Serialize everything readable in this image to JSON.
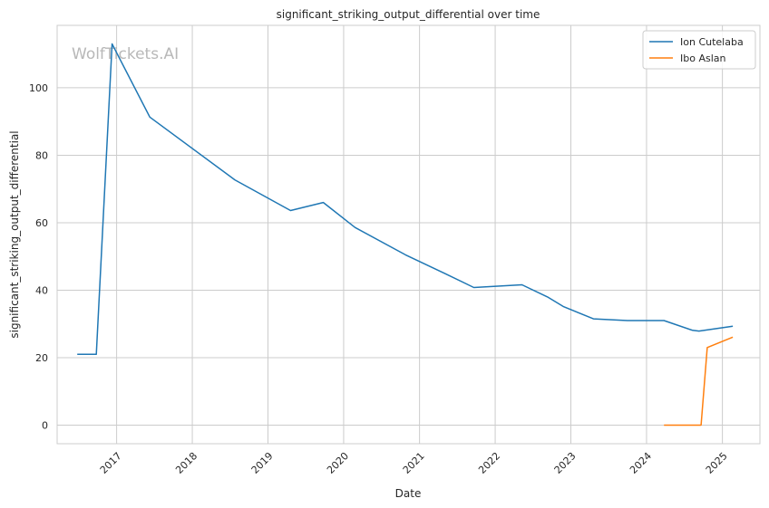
{
  "chart_data": {
    "type": "line",
    "title": "significant_striking_output_differential over time",
    "xlabel": "Date",
    "ylabel": "significant_striking_output_differential",
    "watermark": "WolfTickets.AI",
    "xlim": [
      "2016-03-20",
      "2025-07-01"
    ],
    "ylim": [
      -5.5,
      118.5
    ],
    "x_ticks": [
      "2017-01-01",
      "2018-01-01",
      "2019-01-01",
      "2020-01-01",
      "2021-01-01",
      "2022-01-01",
      "2023-01-01",
      "2024-01-01",
      "2025-01-01"
    ],
    "x_tick_labels": [
      "2017",
      "2018",
      "2019",
      "2020",
      "2021",
      "2022",
      "2023",
      "2024",
      "2025"
    ],
    "y_ticks": [
      0,
      20,
      40,
      60,
      80,
      100
    ],
    "y_tick_labels": [
      "0",
      "20",
      "40",
      "60",
      "80",
      "100"
    ],
    "grid": true,
    "legend_position": "top-right",
    "series": [
      {
        "name": "Ion Cutelaba",
        "color": "#1f77b4",
        "points": [
          [
            "2016-06-25",
            21.0
          ],
          [
            "2016-09-25",
            21.0
          ],
          [
            "2016-12-10",
            113.0
          ],
          [
            "2017-06-10",
            91.3
          ],
          [
            "2018-07-25",
            72.7
          ],
          [
            "2019-04-20",
            63.6
          ],
          [
            "2019-09-25",
            66.0
          ],
          [
            "2020-02-25",
            58.6
          ],
          [
            "2020-10-25",
            50.5
          ],
          [
            "2021-05-01",
            45.0
          ],
          [
            "2021-09-20",
            40.8
          ],
          [
            "2022-05-10",
            41.6
          ],
          [
            "2022-09-10",
            38.0
          ],
          [
            "2022-11-25",
            35.2
          ],
          [
            "2023-04-20",
            31.5
          ],
          [
            "2023-10-01",
            31.0
          ],
          [
            "2024-03-25",
            31.0
          ],
          [
            "2024-08-10",
            28.1
          ],
          [
            "2024-09-10",
            27.9
          ],
          [
            "2025-02-20",
            29.3
          ]
        ]
      },
      {
        "name": "Ibo Aslan",
        "color": "#ff7f0e",
        "points": [
          [
            "2024-03-25",
            0.0
          ],
          [
            "2024-09-20",
            0.0
          ],
          [
            "2024-10-20",
            23.0
          ],
          [
            "2025-02-20",
            26.1
          ]
        ]
      }
    ]
  }
}
